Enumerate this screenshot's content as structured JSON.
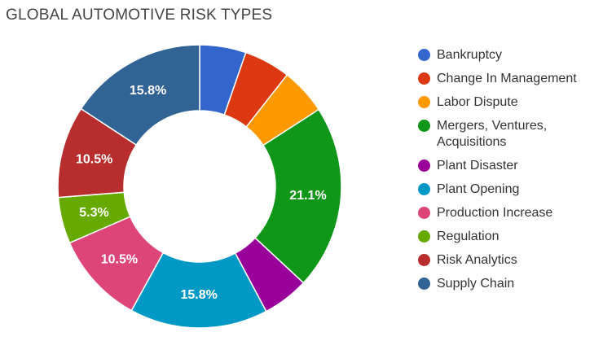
{
  "chart_data": {
    "type": "pie",
    "title": "GLOBAL AUTOMOTIVE RISK TYPES",
    "categories": [
      "Bankruptcy",
      "Change In Management",
      "Labor Dispute",
      "Mergers, Ventures, Acquisitions",
      "Plant Disaster",
      "Plant Opening",
      "Production Increase",
      "Regulation",
      "Risk Analytics",
      "Supply Chain"
    ],
    "legend_lines": [
      [
        "Bankruptcy"
      ],
      [
        "Change In Management"
      ],
      [
        "Labor Dispute"
      ],
      [
        "Mergers, Ventures,",
        "Acquisitions"
      ],
      [
        "Plant Disaster"
      ],
      [
        "Plant Opening"
      ],
      [
        "Production Increase"
      ],
      [
        "Regulation"
      ],
      [
        "Risk Analytics"
      ],
      [
        "Supply Chain"
      ]
    ],
    "values": [
      5.3,
      5.3,
      5.3,
      21.1,
      5.3,
      15.8,
      10.5,
      5.3,
      10.5,
      15.8
    ],
    "unit": "%",
    "data_labels": [
      "",
      "",
      "",
      "21.1%",
      "",
      "15.8%",
      "10.5%",
      "5.3%",
      "10.5%",
      "15.8%"
    ],
    "colors": [
      "#3366cc",
      "#dc3912",
      "#ff9900",
      "#109618",
      "#990099",
      "#0099c6",
      "#dd4477",
      "#66aa00",
      "#b82e2e",
      "#316395"
    ],
    "donut": true,
    "legend_position": "right"
  }
}
